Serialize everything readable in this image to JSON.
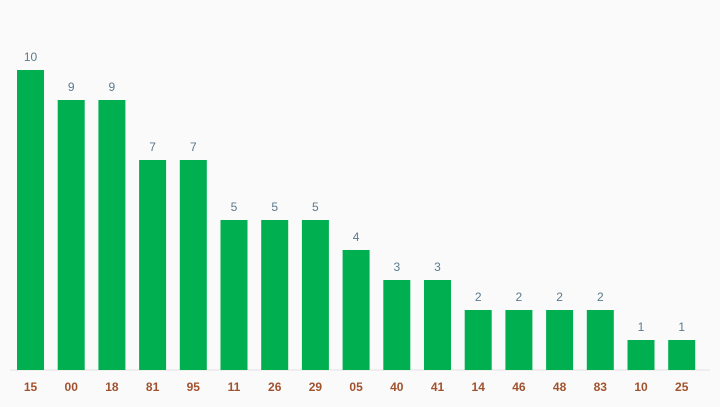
{
  "chart_data": {
    "type": "bar",
    "categories": [
      "15",
      "00",
      "18",
      "81",
      "95",
      "11",
      "26",
      "29",
      "05",
      "40",
      "41",
      "14",
      "46",
      "48",
      "83",
      "10",
      "25"
    ],
    "values": [
      10,
      9,
      9,
      7,
      7,
      5,
      5,
      5,
      4,
      3,
      3,
      2,
      2,
      2,
      2,
      1,
      1
    ],
    "title": "",
    "xlabel": "",
    "ylabel": "",
    "ylim": [
      0,
      10
    ],
    "grid": false,
    "legend": "none",
    "data_labels": true,
    "bar_color": "#00b050",
    "label_color": "#5b7a8c",
    "tick_color": "#a0522d"
  }
}
